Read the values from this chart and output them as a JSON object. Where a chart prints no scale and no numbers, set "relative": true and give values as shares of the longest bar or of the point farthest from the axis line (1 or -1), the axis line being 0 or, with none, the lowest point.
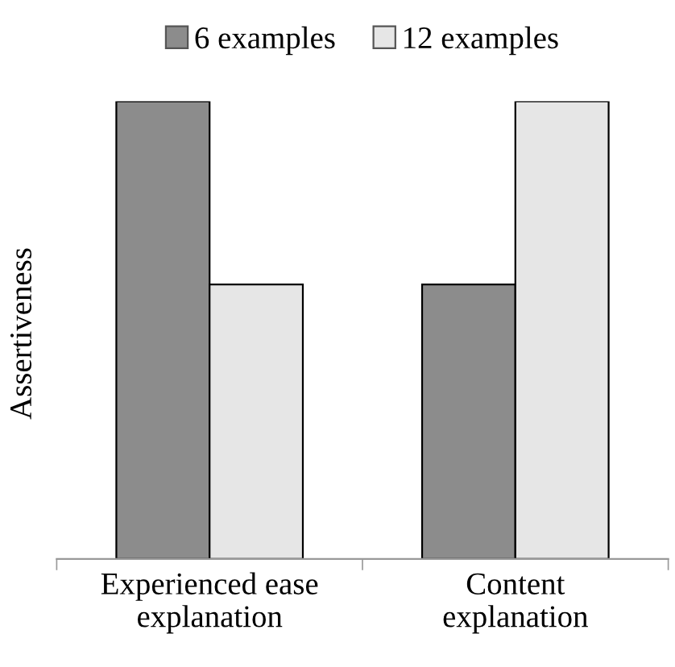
{
  "chart_data": {
    "type": "bar",
    "relative": true,
    "ylabel": "Assertiveness",
    "categories": [
      "Experienced ease\nexplanation",
      "Content\nexplanation"
    ],
    "series": [
      {
        "name": "6 examples",
        "color": "#8c8c8c",
        "values": [
          1,
          0.6
        ]
      },
      {
        "name": "12 examples",
        "color": "#e6e6e6",
        "values": [
          0.6,
          1
        ]
      }
    ],
    "legend": "top",
    "grid": false
  }
}
